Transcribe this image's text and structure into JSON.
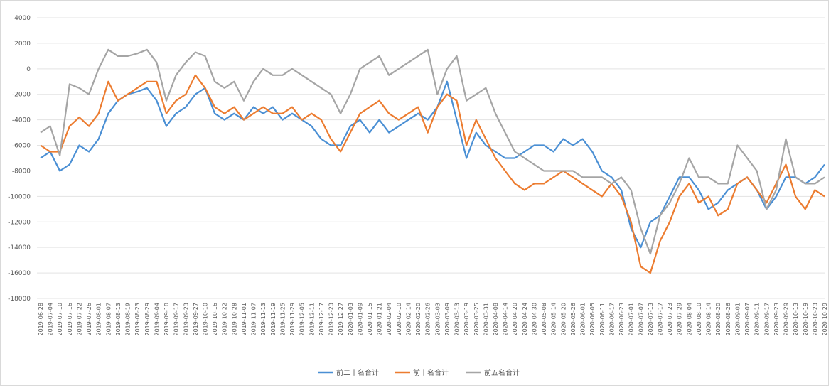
{
  "chart_data": {
    "type": "line",
    "categories": [
      "2019-06-28",
      "2019-07-04",
      "2019-07-10",
      "2019-07-16",
      "2019-07-22",
      "2019-07-26",
      "2019-08-01",
      "2019-08-07",
      "2019-08-13",
      "2019-08-19",
      "2019-08-23",
      "2019-08-29",
      "2019-09-04",
      "2019-09-10",
      "2019-09-17",
      "2019-09-23",
      "2019-09-27",
      "2019-10-10",
      "2019-10-16",
      "2019-10-22",
      "2019-10-28",
      "2019-11-01",
      "2019-11-07",
      "2019-11-13",
      "2019-11-19",
      "2019-11-25",
      "2019-11-29",
      "2019-12-05",
      "2019-12-11",
      "2019-12-17",
      "2019-12-23",
      "2019-12-27",
      "2020-01-03",
      "2020-01-09",
      "2020-01-15",
      "2020-01-21",
      "2020-02-04",
      "2020-02-10",
      "2020-02-14",
      "2020-02-20",
      "2020-02-26",
      "2020-03-03",
      "2020-03-09",
      "2020-03-13",
      "2020-03-19",
      "2020-03-25",
      "2020-03-31",
      "2020-04-08",
      "2020-04-14",
      "2020-04-20",
      "2020-04-24",
      "2020-04-30",
      "2020-05-08",
      "2020-05-14",
      "2020-05-20",
      "2020-05-26",
      "2020-06-01",
      "2020-06-05",
      "2020-06-11",
      "2020-06-17",
      "2020-06-23",
      "2020-07-01",
      "2020-07-07",
      "2020-07-13",
      "2020-07-17",
      "2020-07-23",
      "2020-07-29",
      "2020-08-04",
      "2020-08-10",
      "2020-08-14",
      "2020-08-20",
      "2020-08-26",
      "2020-09-01",
      "2020-09-07",
      "2020-09-11",
      "2020-09-17",
      "2020-09-23",
      "2020-09-29",
      "2020-10-13",
      "2020-10-19",
      "2020-10-23",
      "2020-10-29"
    ],
    "series": [
      {
        "name": "前二十名合计",
        "color": "#4a8fd4",
        "values": [
          -7000,
          -6500,
          -8000,
          -7500,
          -6000,
          -6500,
          -5500,
          -3500,
          -2500,
          -2000,
          -1800,
          -1500,
          -2500,
          -4500,
          -3500,
          -3000,
          -2000,
          -1500,
          -3500,
          -4000,
          -3500,
          -4000,
          -3000,
          -3500,
          -3000,
          -4000,
          -3500,
          -4000,
          -4500,
          -5500,
          -6000,
          -6000,
          -4500,
          -4000,
          -5000,
          -4000,
          -5000,
          -4500,
          -4000,
          -3500,
          -4000,
          -3000,
          -1000,
          -4000,
          -7000,
          -5000,
          -6000,
          -6500,
          -7000,
          -7000,
          -6500,
          -6000,
          -6000,
          -6500,
          -5500,
          -6000,
          -5500,
          -6500,
          -8000,
          -8500,
          -9500,
          -12500,
          -14000,
          -12000,
          -11500,
          -10000,
          -8500,
          -8500,
          -9500,
          -11000,
          -10500,
          -9500,
          -9000,
          -8500,
          -9500,
          -11000,
          -10000,
          -8500,
          -8500,
          -9000,
          -8500,
          -7500
        ]
      },
      {
        "name": "前十名合计",
        "color": "#ec7c30",
        "values": [
          -6000,
          -6500,
          -6500,
          -4500,
          -3800,
          -4500,
          -3500,
          -1000,
          -2500,
          -2000,
          -1500,
          -1000,
          -1000,
          -3500,
          -2500,
          -2000,
          -500,
          -1500,
          -3000,
          -3500,
          -3000,
          -4000,
          -3500,
          -3000,
          -3500,
          -3500,
          -3000,
          -4000,
          -3500,
          -4000,
          -5500,
          -6500,
          -5000,
          -3500,
          -3000,
          -2500,
          -3500,
          -4000,
          -3500,
          -3000,
          -5000,
          -3000,
          -2000,
          -2500,
          -6000,
          -4000,
          -5500,
          -7000,
          -8000,
          -9000,
          -9500,
          -9000,
          -9000,
          -8500,
          -8000,
          -8500,
          -9000,
          -9500,
          -10000,
          -9000,
          -10000,
          -12000,
          -15500,
          -16000,
          -13500,
          -12000,
          -10000,
          -9000,
          -10500,
          -10000,
          -11500,
          -11000,
          -9000,
          -8500,
          -9500,
          -10500,
          -9000,
          -7500,
          -10000,
          -11000,
          -9500,
          -10000
        ]
      },
      {
        "name": "前五名合计",
        "color": "#a5a5a5",
        "values": [
          -5000,
          -4500,
          -6800,
          -1200,
          -1500,
          -2000,
          0,
          1500,
          1000,
          1000,
          1200,
          1500,
          500,
          -2500,
          -500,
          500,
          1300,
          1000,
          -1000,
          -1500,
          -1000,
          -2500,
          -1000,
          0,
          -500,
          -500,
          0,
          -500,
          -1000,
          -1500,
          -2000,
          -3500,
          -2000,
          0,
          500,
          1000,
          -500,
          0,
          500,
          1000,
          1500,
          -2000,
          0,
          1000,
          -2500,
          -2000,
          -1500,
          -3500,
          -5000,
          -6500,
          -7000,
          -7500,
          -8000,
          -8000,
          -8000,
          -8000,
          -8500,
          -8500,
          -8500,
          -9000,
          -8500,
          -9500,
          -12500,
          -14500,
          -11500,
          -10500,
          -9000,
          -7000,
          -8500,
          -8500,
          -9000,
          -9000,
          -6000,
          -7000,
          -8000,
          -11000,
          -9500,
          -5500,
          -8500,
          -9000,
          -9000,
          -8500
        ]
      }
    ],
    "ylim": [
      -18000,
      4000
    ],
    "yticks": [
      -18000,
      -16000,
      -14000,
      -12000,
      -10000,
      -8000,
      -6000,
      -4000,
      -2000,
      0,
      2000,
      4000
    ],
    "grid": true,
    "legend": "bottom"
  }
}
